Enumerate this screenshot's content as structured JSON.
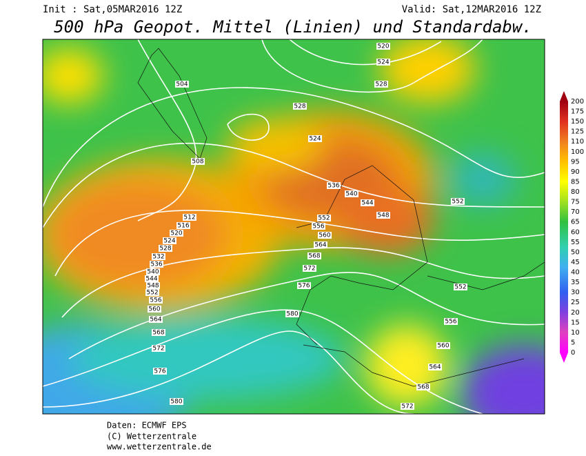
{
  "header": {
    "init": "Init : Sat,05MAR2016 12Z",
    "valid": "Valid: Sat,12MAR2016 12Z",
    "title": "500 hPa Geopot. Mittel (Linien) und Standardabw."
  },
  "colorbar": {
    "labels": [
      "200",
      "175",
      "150",
      "125",
      "110",
      "100",
      "95",
      "90",
      "85",
      "80",
      "75",
      "70",
      "65",
      "60",
      "55",
      "50",
      "45",
      "40",
      "35",
      "30",
      "25",
      "20",
      "15",
      "10",
      "5",
      "0"
    ]
  },
  "contour_labels": [
    "520",
    "524",
    "528",
    "504",
    "528",
    "524",
    "508",
    "536",
    "540",
    "544",
    "548",
    "552",
    "512",
    "516",
    "520",
    "524",
    "528",
    "532",
    "536",
    "540",
    "544",
    "548",
    "552",
    "556",
    "560",
    "564",
    "568",
    "572",
    "576",
    "580",
    "552",
    "556",
    "560",
    "564",
    "568",
    "572",
    "576",
    "580",
    "552",
    "556",
    "560",
    "564",
    "568",
    "572"
  ],
  "footer": {
    "lines": [
      "Daten: ECMWF EPS",
      "(C) Wetterzentrale",
      "www.wetterzentrale.de"
    ]
  }
}
